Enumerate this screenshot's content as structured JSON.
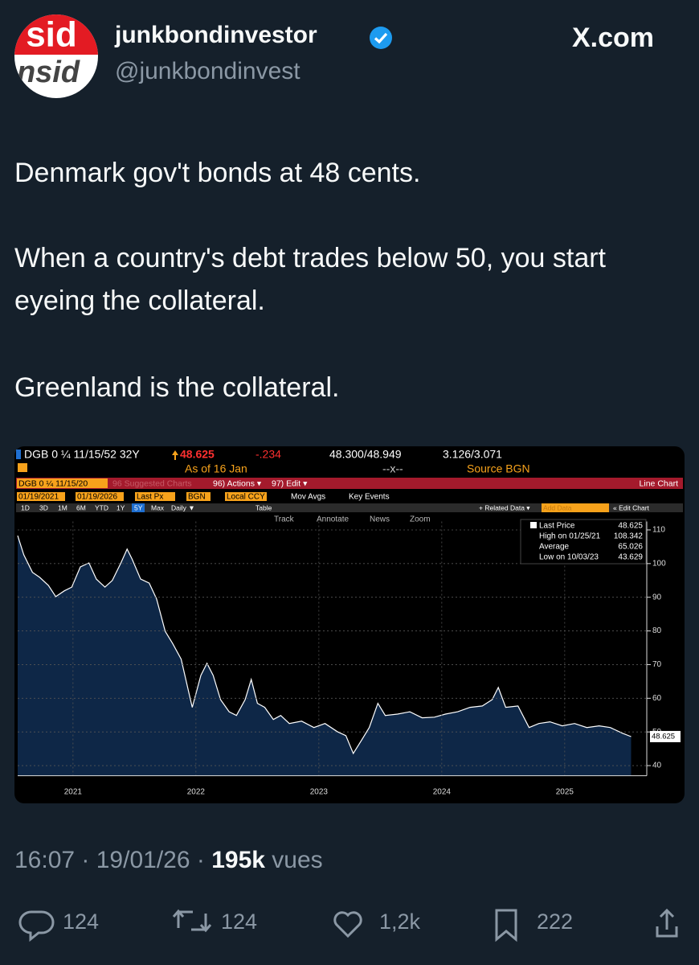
{
  "avatar": [
    "sid",
    "nsid"
  ],
  "author": {
    "name": "junkbondinvestor",
    "handle": "@junkbondinvest"
  },
  "site": "X.com",
  "text": [
    "Denmark gov't bonds at 48 cents.",
    "When a country's debt trades below 50, you start eyeing the collateral.",
    "Greenland is the collateral."
  ],
  "meta": {
    "time": "16:07",
    "date": "19/01/26",
    "views": "195k",
    "views_label": "vues"
  },
  "actions": {
    "replies": "124",
    "reposts": "124",
    "likes": "1,2k",
    "bookmarks": "222"
  },
  "terminal": {
    "security": "DGB 0 ¼ 11/15/52 32Y",
    "price": 48.625,
    "change": "-.234",
    "bid_ask": "48.300/48.949",
    "yields": "3.126/3.071",
    "as_of": "As of 16 Jan",
    "cross": "--x--",
    "source": "Source BGN",
    "menu": [
      "DGB 0 ¼ 11/15/20",
      "96 Suggested Charts",
      "96) Actions ▾",
      "97) Edit ▾",
      "Line Chart"
    ],
    "settings": [
      "01/19/2021",
      "01/19/2026",
      "Last Px",
      "BGN",
      "Local CCY",
      "Mov Avgs",
      "Key Events"
    ],
    "periods": [
      "1D",
      "3D",
      "1M",
      "6M",
      "YTD",
      "1Y",
      "5Y",
      "Max",
      "Daily ▼",
      "Table"
    ],
    "right_tools": [
      "+ Related Data ▾",
      "Add Data",
      "« Edit Chart"
    ],
    "tools": [
      "Track",
      "Annotate",
      "News",
      "Zoom"
    ]
  },
  "chart_data": {
    "type": "area",
    "series": [
      {
        "color": "#ffffff",
        "fill_color": "#0e2747",
        "x": [
          2021.05,
          2021.1,
          2021.17,
          2021.23,
          2021.3,
          2021.36,
          2021.43,
          2021.49,
          2021.56,
          2021.63,
          2021.69,
          2021.76,
          2021.82,
          2021.89,
          2021.94,
          2021.98,
          2022.05,
          2022.12,
          2022.18,
          2022.25,
          2022.31,
          2022.38,
          2022.44,
          2022.47,
          2022.54,
          2022.59,
          2022.64,
          2022.7,
          2022.77,
          2022.83,
          2022.9,
          2022.95,
          2023.0,
          2023.06,
          2023.13,
          2023.19,
          2023.26,
          2023.36,
          2023.46,
          2023.55,
          2023.65,
          2023.72,
          2023.78,
          2023.85,
          2023.91,
          2023.98,
          2024.04,
          2024.14,
          2024.24,
          2024.34,
          2024.44,
          2024.53,
          2024.63,
          2024.73,
          2024.83,
          2024.91,
          2024.96,
          2025.02,
          2025.12,
          2025.21,
          2025.29,
          2025.38,
          2025.48,
          2025.58,
          2025.68,
          2025.78,
          2025.87,
          2025.97,
          2026.04
        ],
        "values": [
          108.3,
          102.6,
          97.4,
          95.9,
          93.5,
          90.2,
          91.9,
          93.0,
          99.0,
          100.2,
          95.4,
          93.0,
          95.0,
          100.2,
          104.3,
          101.4,
          95.4,
          94.2,
          89.5,
          79.9,
          76.3,
          71.6,
          62.0,
          57.3,
          66.8,
          70.4,
          66.8,
          59.6,
          56.0,
          54.9,
          59.6,
          65.6,
          58.5,
          57.3,
          53.7,
          54.9,
          52.5,
          53.2,
          51.3,
          52.5,
          50.1,
          48.9,
          43.6,
          47.7,
          51.3,
          58.5,
          54.9,
          55.3,
          56.0,
          54.2,
          54.4,
          55.3,
          56.0,
          57.3,
          57.7,
          59.6,
          63.2,
          57.3,
          57.7,
          51.3,
          52.5,
          53.0,
          51.8,
          52.5,
          51.3,
          51.8,
          51.3,
          49.6,
          48.6
        ]
      }
    ],
    "xlim": [
      2021.05,
      2026.05
    ],
    "xticks": [
      {
        "value": 2021.5,
        "label": "2021"
      },
      {
        "value": 2022.5,
        "label": "2022"
      },
      {
        "value": 2023.5,
        "label": "2023"
      },
      {
        "value": 2024.5,
        "label": "2024"
      },
      {
        "value": 2025.5,
        "label": "2025"
      }
    ],
    "ylim": [
      37,
      112.5
    ],
    "yticks": [
      40,
      50,
      60,
      70,
      80,
      90,
      100,
      110
    ],
    "grid": true,
    "legend": [
      {
        "label": "Last Price",
        "value": 48.625
      },
      {
        "label": "High on 01/25/21",
        "value": 108.342
      },
      {
        "label": "Average",
        "value": 65.026
      },
      {
        "label": "Low on 10/03/23",
        "value": 43.629
      }
    ]
  }
}
